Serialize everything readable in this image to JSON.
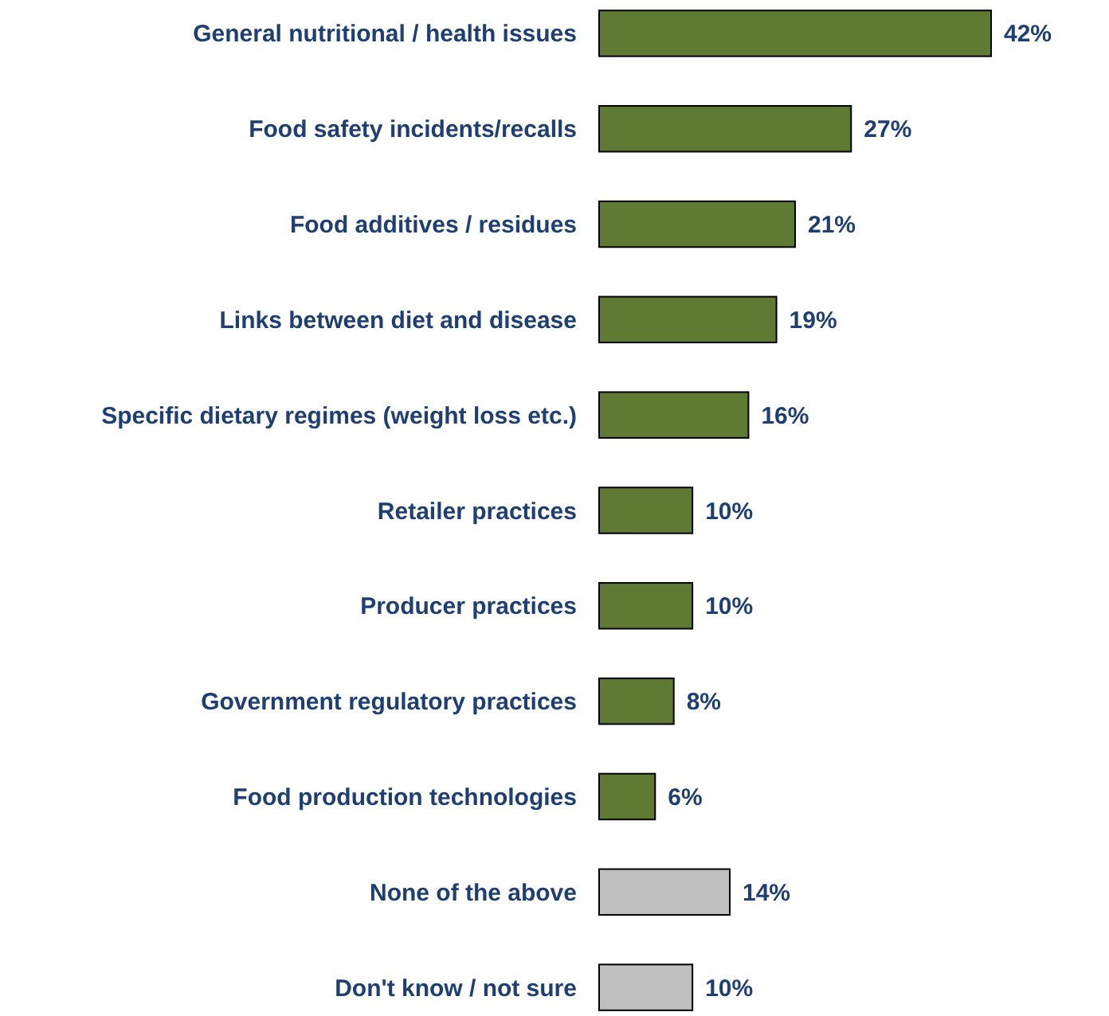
{
  "chart_data": {
    "type": "bar",
    "orientation": "horizontal",
    "categories": [
      "General nutritional / health issues",
      "Food safety incidents/recalls",
      "Food additives / residues",
      "Links between diet and disease",
      "Specific dietary regimes (weight loss etc.)",
      "Retailer practices",
      "Producer practices",
      "Government regulatory practices",
      "Food production technologies",
      "None of the above",
      "Don't know / not sure"
    ],
    "values": [
      42,
      27,
      21,
      19,
      16,
      10,
      10,
      8,
      6,
      14,
      10
    ],
    "colors": [
      "#5f7a32",
      "#5f7a32",
      "#5f7a32",
      "#5f7a32",
      "#5f7a32",
      "#5f7a32",
      "#5f7a32",
      "#5f7a32",
      "#5f7a32",
      "#bfbfbf",
      "#bfbfbf"
    ],
    "value_labels": [
      "42%",
      "27%",
      "21%",
      "19%",
      "16%",
      "10%",
      "10%",
      "8%",
      "6%",
      "14%",
      "10%"
    ]
  }
}
